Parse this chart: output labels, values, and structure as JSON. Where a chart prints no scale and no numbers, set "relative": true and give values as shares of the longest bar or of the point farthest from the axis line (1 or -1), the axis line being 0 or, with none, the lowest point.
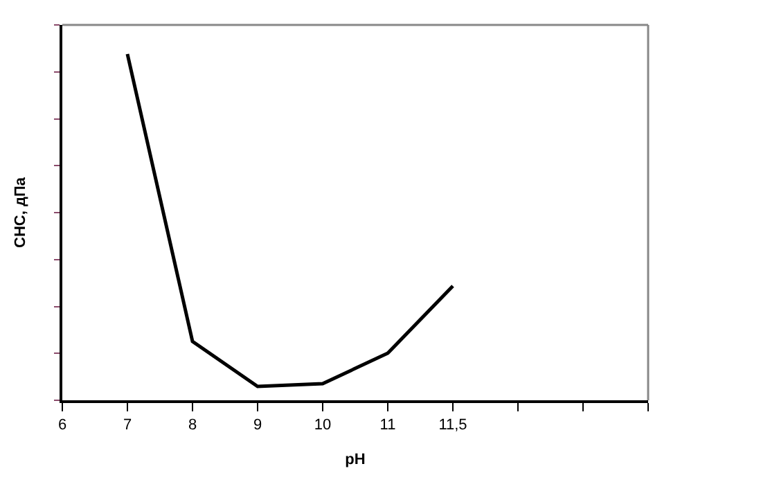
{
  "chart_data": {
    "type": "line",
    "relative": true,
    "xlabel": "pH",
    "ylabel": "СНС, дПа",
    "categories": [
      "6",
      "7",
      "8",
      "9",
      "10",
      "11",
      "11,5",
      null,
      null,
      null
    ],
    "series": [
      {
        "color": "#000000",
        "values": [
          null,
          1.0,
          0.17,
          0.04,
          0.048,
          0.136,
          0.33,
          null,
          null,
          null
        ]
      }
    ],
    "tick_labels": "x",
    "legend": false,
    "marker": "none",
    "line_style": "solid"
  }
}
